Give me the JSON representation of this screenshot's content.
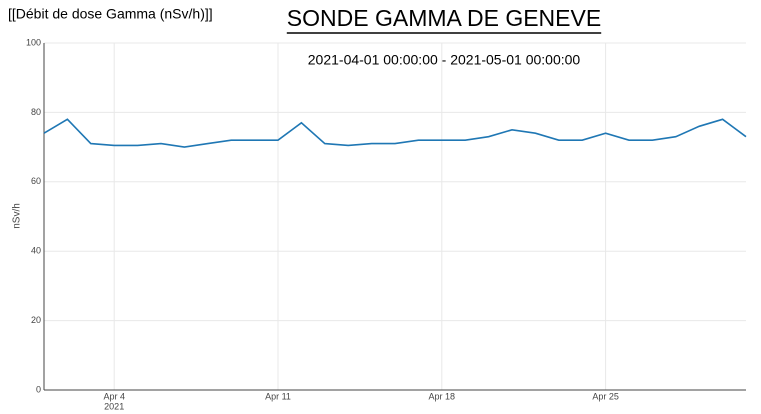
{
  "chart_data": {
    "type": "line",
    "header": "[[Débit de dose Gamma (nSv/h)]]",
    "title": "SONDE GAMMA DE GENEVE",
    "subtitle": "2021-04-01 00:00:00 - 2021-05-01 00:00:00",
    "y_label": "nSv/h",
    "x_year_label": "2021",
    "x": [
      "2021-04-01",
      "2021-04-02",
      "2021-04-03",
      "2021-04-04",
      "2021-04-05",
      "2021-04-06",
      "2021-04-07",
      "2021-04-08",
      "2021-04-09",
      "2021-04-10",
      "2021-04-11",
      "2021-04-12",
      "2021-04-13",
      "2021-04-14",
      "2021-04-15",
      "2021-04-16",
      "2021-04-17",
      "2021-04-18",
      "2021-04-19",
      "2021-04-20",
      "2021-04-21",
      "2021-04-22",
      "2021-04-23",
      "2021-04-24",
      "2021-04-25",
      "2021-04-26",
      "2021-04-27",
      "2021-04-28",
      "2021-04-29",
      "2021-04-30",
      "2021-05-01"
    ],
    "series": [
      {
        "name": "nSv/h",
        "color": "#1f77b4",
        "values": [
          74,
          78,
          71,
          70.5,
          70.5,
          71,
          70,
          71,
          72,
          72,
          72,
          77,
          71,
          70.5,
          71,
          71,
          72,
          72,
          72,
          73,
          75,
          74,
          72,
          72,
          74,
          72,
          72,
          73,
          76,
          78,
          73
        ]
      }
    ],
    "xlim": [
      "2021-04-01",
      "2021-05-01"
    ],
    "xticks": [
      {
        "value": "2021-04-04",
        "label": "Apr 4"
      },
      {
        "value": "2021-04-11",
        "label": "Apr 11"
      },
      {
        "value": "2021-04-18",
        "label": "Apr 18"
      },
      {
        "value": "2021-04-25",
        "label": "Apr 25"
      }
    ],
    "ylim": [
      0,
      100
    ],
    "yticks": [
      0,
      20,
      40,
      60,
      80,
      100
    ],
    "grid": true
  }
}
